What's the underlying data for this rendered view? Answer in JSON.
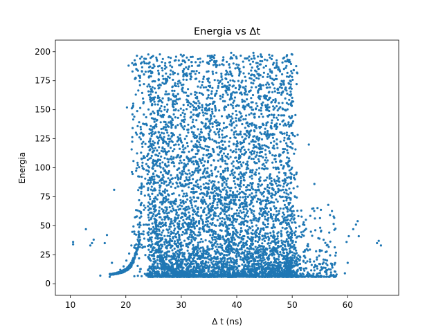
{
  "chart_data": {
    "type": "scatter",
    "title": "Energia vs Δt",
    "xlabel": "Δ t (ns)",
    "ylabel": "Energia",
    "xlim": [
      7.3,
      69.2
    ],
    "ylim": [
      -10,
      210
    ],
    "xticks": [
      10,
      20,
      30,
      40,
      50,
      60
    ],
    "yticks": [
      0,
      25,
      50,
      75,
      100,
      125,
      150,
      175,
      200
    ],
    "grid": false,
    "color": "#1f77b4",
    "series": [
      {
        "points": [
          [
            10.5,
            34
          ],
          [
            10.5,
            36
          ],
          [
            12.8,
            47
          ],
          [
            13.6,
            33
          ],
          [
            13.9,
            35
          ],
          [
            14.2,
            38
          ],
          [
            15.4,
            7
          ],
          [
            16.2,
            35
          ],
          [
            16.6,
            42
          ],
          [
            17.1,
            6
          ],
          [
            17.5,
            18
          ],
          [
            17.9,
            81
          ],
          [
            18.4,
            9
          ],
          [
            19.0,
            12
          ],
          [
            19.6,
            15
          ],
          [
            20.1,
            20
          ],
          [
            20.6,
            26
          ],
          [
            21.0,
            33
          ],
          [
            21.5,
            45
          ],
          [
            22.0,
            58
          ],
          [
            22.4,
            72
          ],
          [
            20.2,
            152
          ],
          [
            20.5,
            188
          ],
          [
            21.2,
            183
          ],
          [
            21.8,
            163
          ],
          [
            22.6,
            194
          ],
          [
            23.0,
            118
          ],
          [
            23.4,
            190
          ],
          [
            23.8,
            8
          ],
          [
            24.1,
            6
          ],
          [
            24.3,
            15
          ],
          [
            24.6,
            38
          ],
          [
            25.0,
            60
          ],
          [
            25.5,
            195
          ],
          [
            26.0,
            92
          ],
          [
            27.0,
            150
          ],
          [
            28.0,
            188
          ],
          [
            29.0,
            120
          ],
          [
            30.0,
            70
          ],
          [
            31.0,
            195
          ],
          [
            32.0,
            45
          ],
          [
            33.0,
            170
          ],
          [
            34.0,
            25
          ],
          [
            35.0,
            140
          ],
          [
            36.0,
            197
          ],
          [
            37.0,
            60
          ],
          [
            38.0,
            110
          ],
          [
            39.0,
            199
          ],
          [
            40.0,
            30
          ],
          [
            41.0,
            175
          ],
          [
            42.0,
            85
          ],
          [
            43.0,
            199
          ],
          [
            44.0,
            40
          ],
          [
            45.0,
            160
          ],
          [
            46.0,
            195
          ],
          [
            47.0,
            55
          ],
          [
            48.0,
            130
          ],
          [
            49.0,
            196
          ],
          [
            50.0,
            20
          ],
          [
            50.5,
            75
          ],
          [
            51.0,
            12
          ],
          [
            52.0,
            45
          ],
          [
            53.0,
            120
          ],
          [
            54.0,
            86
          ],
          [
            55.0,
            28
          ],
          [
            56.0,
            10
          ],
          [
            56.5,
            68
          ],
          [
            57.0,
            8
          ],
          [
            58.0,
            8
          ],
          [
            59.5,
            9
          ],
          [
            59.8,
            36
          ],
          [
            60.0,
            18
          ],
          [
            60.2,
            41
          ],
          [
            61.0,
            47
          ],
          [
            61.5,
            51
          ],
          [
            61.8,
            54
          ],
          [
            62.0,
            41
          ],
          [
            65.3,
            35
          ],
          [
            65.6,
            37
          ],
          [
            66.0,
            33
          ]
        ]
      }
    ]
  }
}
